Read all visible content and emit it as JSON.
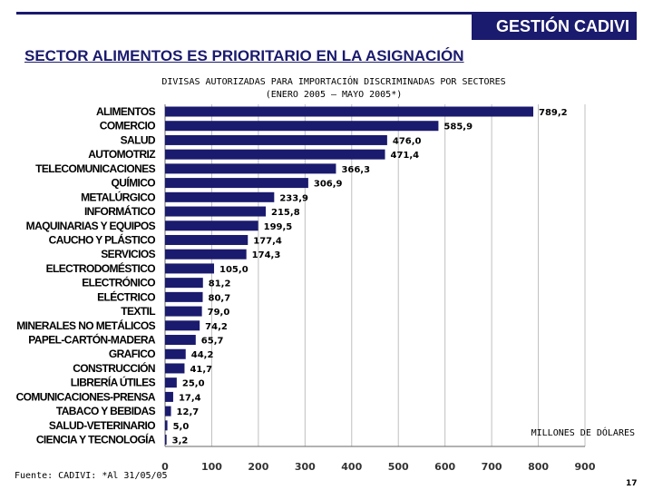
{
  "header": {
    "banner": "GESTIÓN CADIVI",
    "title": "SECTOR ALIMENTOS ES PRIORITARIO EN LA ASIGNACIÓN"
  },
  "footer": {
    "source": "Fuente: CADIVI: *Al 31/05/05",
    "page_number": "17"
  },
  "colors": {
    "bar": "#1a1a6e",
    "title": "#1a1a6e"
  },
  "chart_data": {
    "type": "bar",
    "orientation": "horizontal",
    "title": "DIVISAS AUTORIZADAS PARA IMPORTACIÓN DISCRIMINADAS POR SECTORES",
    "subtitle": "(ENERO 2005 – MAYO 2005*)",
    "xlabel": "MILLONES DE DÓLARES",
    "ylabel": "",
    "xlim": [
      0,
      900
    ],
    "xticks": [
      0,
      100,
      200,
      300,
      400,
      500,
      600,
      700,
      800,
      900
    ],
    "grid": true,
    "categories": [
      "ALIMENTOS",
      "COMERCIO",
      "SALUD",
      "AUTOMOTRIZ",
      "TELECOMUNICACIONES",
      "QUÍMICO",
      "METALÚRGICO",
      "INFORMÁTICO",
      "MAQUINARIAS Y EQUIPOS",
      "CAUCHO Y PLÁSTICO",
      "SERVICIOS",
      "ELECTRODOMÉSTICO",
      "ELECTRÓNICO",
      "ELÉCTRICO",
      "TEXTIL",
      "MINERALES NO METÁLICOS",
      "PAPEL-CARTÓN-MADERA",
      "GRAFICO",
      "CONSTRUCCIÓN",
      "LIBRERÍA ÚTILES",
      "COMUNICACIONES-PRENSA",
      "TABACO Y BEBIDAS",
      "SALUD-VETERINARIO",
      "CIENCIA Y TECNOLOGÍA"
    ],
    "values": [
      789.2,
      585.9,
      476.0,
      471.4,
      366.3,
      306.9,
      233.9,
      215.8,
      199.5,
      177.4,
      174.3,
      105.0,
      81.2,
      80.7,
      79.0,
      74.2,
      65.7,
      44.2,
      41.7,
      25.0,
      17.4,
      12.7,
      5.0,
      3.2
    ],
    "value_labels": [
      "789,2",
      "585,9",
      "476,0",
      "471,4",
      "366,3",
      "306,9",
      "233,9",
      "215,8",
      "199,5",
      "177,4",
      "174,3",
      "105,0",
      "81,2",
      "80,7",
      "79,0",
      "74,2",
      "65,7",
      "44,2",
      "41,7",
      "25,0",
      "17,4",
      "12,7",
      "5,0",
      "3,2"
    ]
  }
}
